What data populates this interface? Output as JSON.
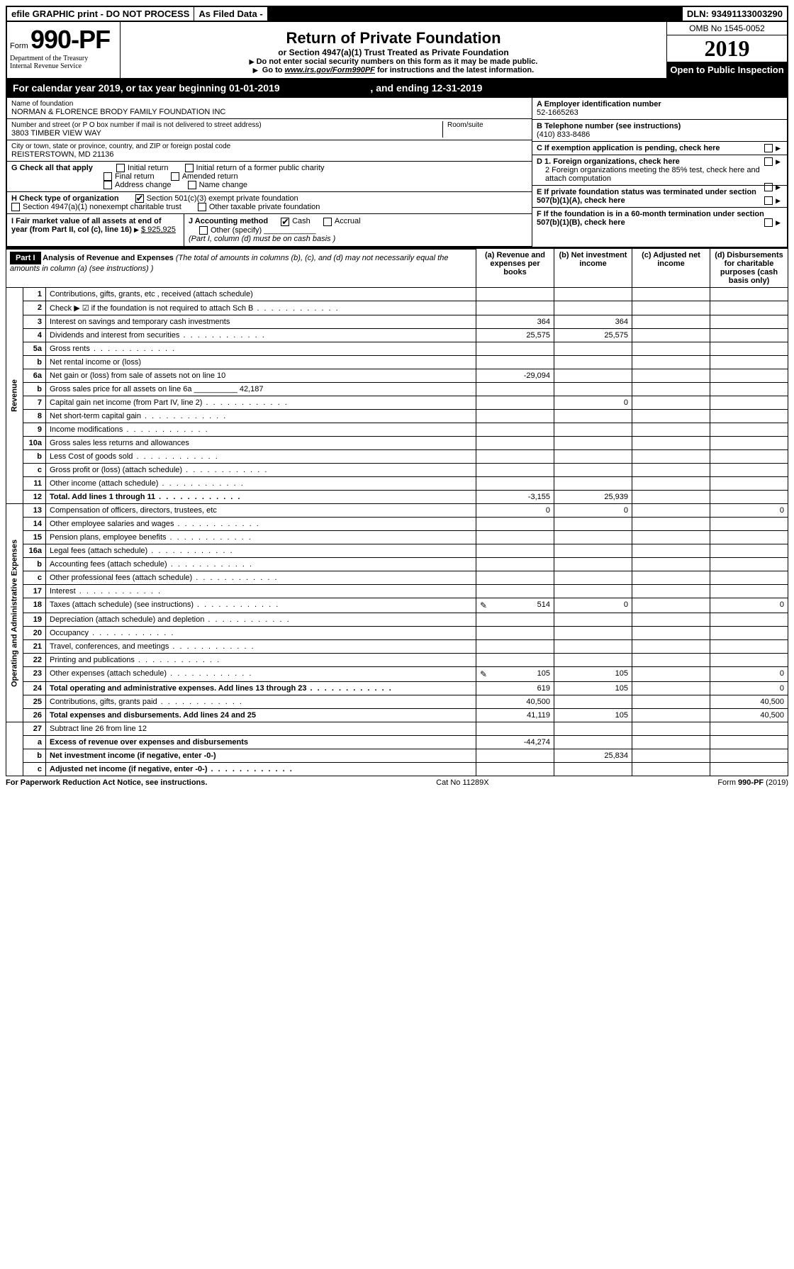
{
  "topbar": {
    "efile": "efile GRAPHIC print - DO NOT PROCESS",
    "asfiled": "As Filed Data -",
    "dln": "DLN: 93491133003290"
  },
  "header": {
    "form_prefix": "Form",
    "form_number": "990-PF",
    "dept1": "Department of the Treasury",
    "dept2": "Internal Revenue Service",
    "title": "Return of Private Foundation",
    "subtitle": "or Section 4947(a)(1) Trust Treated as Private Foundation",
    "instr1": "Do not enter social security numbers on this form as it may be made public.",
    "instr2_a": "Go to ",
    "instr2_link": "www.irs.gov/Form990PF",
    "instr2_b": " for instructions and the latest information.",
    "omb": "OMB No 1545-0052",
    "year": "2019",
    "open": "Open to Public Inspection"
  },
  "calyear": {
    "text_a": "For calendar year 2019, or tax year beginning ",
    "begin": "01-01-2019",
    "text_b": " , and ending ",
    "end": "12-31-2019"
  },
  "info": {
    "name_label": "Name of foundation",
    "name": "NORMAN & FLORENCE BRODY FAMILY FOUNDATION INC",
    "addr_label": "Number and street (or P O  box number if mail is not delivered to street address)",
    "addr": "3803 TIMBER VIEW WAY",
    "room_label": "Room/suite",
    "city_label": "City or town, state or province, country, and ZIP or foreign postal code",
    "city": "REISTERSTOWN, MD  21136",
    "ein_label": "A Employer identification number",
    "ein": "52-1665263",
    "phone_label": "B Telephone number (see instructions)",
    "phone": "(410) 833-8486",
    "c_label": "C If exemption application is pending, check here",
    "g_label": "G Check all that apply",
    "g_opts": [
      "Initial return",
      "Initial return of a former public charity",
      "Final return",
      "Amended return",
      "Address change",
      "Name change"
    ],
    "h_label": "H Check type of organization",
    "h_opt1": "Section 501(c)(3) exempt private foundation",
    "h_opt2": "Section 4947(a)(1) nonexempt charitable trust",
    "h_opt3": "Other taxable private foundation",
    "d1": "D 1. Foreign organizations, check here",
    "d2": "2 Foreign organizations meeting the 85% test, check here and attach computation",
    "e": "E  If private foundation status was terminated under section 507(b)(1)(A), check here",
    "f": "F  If the foundation is in a 60-month termination under section 507(b)(1)(B), check here",
    "i_label": "I Fair market value of all assets at end of year (from Part II, col  (c), line 16)",
    "i_val": "$  925,925",
    "j_label": "J Accounting method",
    "j_cash": "Cash",
    "j_accrual": "Accrual",
    "j_other": "Other (specify)",
    "j_note": "(Part I, column (d) must be on cash basis )"
  },
  "part1": {
    "label": "Part I",
    "title": "Analysis of Revenue and Expenses",
    "title_note": "(The total of amounts in columns (b), (c), and (d) may not necessarily equal the amounts in column (a) (see instructions) )",
    "col_a": "(a) Revenue and expenses per books",
    "col_b": "(b) Net investment income",
    "col_c": "(c) Adjusted net income",
    "col_d": "(d) Disbursements for charitable purposes (cash basis only)"
  },
  "sections": {
    "revenue": "Revenue",
    "expenses": "Operating and Administrative Expenses"
  },
  "rows": [
    {
      "sec": "rev",
      "n": "1",
      "d": "Contributions, gifts, grants, etc , received (attach schedule)"
    },
    {
      "sec": "rev",
      "n": "2",
      "d": "Check ▶ ☑ if the foundation is not required to attach Sch  B",
      "dots": true
    },
    {
      "sec": "rev",
      "n": "3",
      "d": "Interest on savings and temporary cash investments",
      "a": "364",
      "b": "364"
    },
    {
      "sec": "rev",
      "n": "4",
      "d": "Dividends and interest from securities",
      "dots": true,
      "a": "25,575",
      "b": "25,575"
    },
    {
      "sec": "rev",
      "n": "5a",
      "d": "Gross rents",
      "dots": true
    },
    {
      "sec": "rev",
      "n": "b",
      "d": "Net rental income or (loss)"
    },
    {
      "sec": "rev",
      "n": "6a",
      "d": "Net gain or (loss) from sale of assets not on line 10",
      "a": "-29,094"
    },
    {
      "sec": "rev",
      "n": "b",
      "d": "Gross sales price for all assets on line 6a __________ 42,187"
    },
    {
      "sec": "rev",
      "n": "7",
      "d": "Capital gain net income (from Part IV, line 2)",
      "dots": true,
      "b": "0"
    },
    {
      "sec": "rev",
      "n": "8",
      "d": "Net short-term capital gain",
      "dots": true
    },
    {
      "sec": "rev",
      "n": "9",
      "d": "Income modifications",
      "dots": true
    },
    {
      "sec": "rev",
      "n": "10a",
      "d": "Gross sales less returns and allowances"
    },
    {
      "sec": "rev",
      "n": "b",
      "d": "Less  Cost of goods sold",
      "dots": true
    },
    {
      "sec": "rev",
      "n": "c",
      "d": "Gross profit or (loss) (attach schedule)",
      "dots": true
    },
    {
      "sec": "rev",
      "n": "11",
      "d": "Other income (attach schedule)",
      "dots": true
    },
    {
      "sec": "rev",
      "n": "12",
      "d": "Total. Add lines 1 through 11",
      "dots": true,
      "bold": true,
      "a": "-3,155",
      "b": "25,939"
    },
    {
      "sec": "exp",
      "n": "13",
      "d": "Compensation of officers, directors, trustees, etc",
      "a": "0",
      "b": "0",
      "dd": "0"
    },
    {
      "sec": "exp",
      "n": "14",
      "d": "Other employee salaries and wages",
      "dots": true
    },
    {
      "sec": "exp",
      "n": "15",
      "d": "Pension plans, employee benefits",
      "dots": true
    },
    {
      "sec": "exp",
      "n": "16a",
      "d": "Legal fees (attach schedule)",
      "dots": true
    },
    {
      "sec": "exp",
      "n": "b",
      "d": "Accounting fees (attach schedule)",
      "dots": true
    },
    {
      "sec": "exp",
      "n": "c",
      "d": "Other professional fees (attach schedule)",
      "dots": true
    },
    {
      "sec": "exp",
      "n": "17",
      "d": "Interest",
      "dots": true
    },
    {
      "sec": "exp",
      "n": "18",
      "d": "Taxes (attach schedule) (see instructions)",
      "dots": true,
      "pencil": true,
      "a": "514",
      "b": "0",
      "dd": "0"
    },
    {
      "sec": "exp",
      "n": "19",
      "d": "Depreciation (attach schedule) and depletion",
      "dots": true
    },
    {
      "sec": "exp",
      "n": "20",
      "d": "Occupancy",
      "dots": true
    },
    {
      "sec": "exp",
      "n": "21",
      "d": "Travel, conferences, and meetings",
      "dots": true
    },
    {
      "sec": "exp",
      "n": "22",
      "d": "Printing and publications",
      "dots": true
    },
    {
      "sec": "exp",
      "n": "23",
      "d": "Other expenses (attach schedule)",
      "dots": true,
      "pencil": true,
      "a": "105",
      "b": "105",
      "dd": "0"
    },
    {
      "sec": "exp",
      "n": "24",
      "d": "Total operating and administrative expenses. Add lines 13 through 23",
      "dots": true,
      "bold": true,
      "a": "619",
      "b": "105",
      "dd": "0"
    },
    {
      "sec": "exp",
      "n": "25",
      "d": "Contributions, gifts, grants paid",
      "dots": true,
      "a": "40,500",
      "dd": "40,500"
    },
    {
      "sec": "exp",
      "n": "26",
      "d": "Total expenses and disbursements. Add lines 24 and 25",
      "bold": true,
      "a": "41,119",
      "b": "105",
      "dd": "40,500"
    },
    {
      "sec": "bot",
      "n": "27",
      "d": "Subtract line 26 from line 12"
    },
    {
      "sec": "bot",
      "n": "a",
      "d": "Excess of revenue over expenses and disbursements",
      "bold": true,
      "a": "-44,274"
    },
    {
      "sec": "bot",
      "n": "b",
      "d": "Net investment income (if negative, enter -0-)",
      "bold": true,
      "b": "25,834"
    },
    {
      "sec": "bot",
      "n": "c",
      "d": "Adjusted net income (if negative, enter -0-)",
      "dots": true,
      "bold": true
    }
  ],
  "footer": {
    "left": "For Paperwork Reduction Act Notice, see instructions.",
    "mid": "Cat  No  11289X",
    "right": "Form 990-PF (2019)"
  }
}
